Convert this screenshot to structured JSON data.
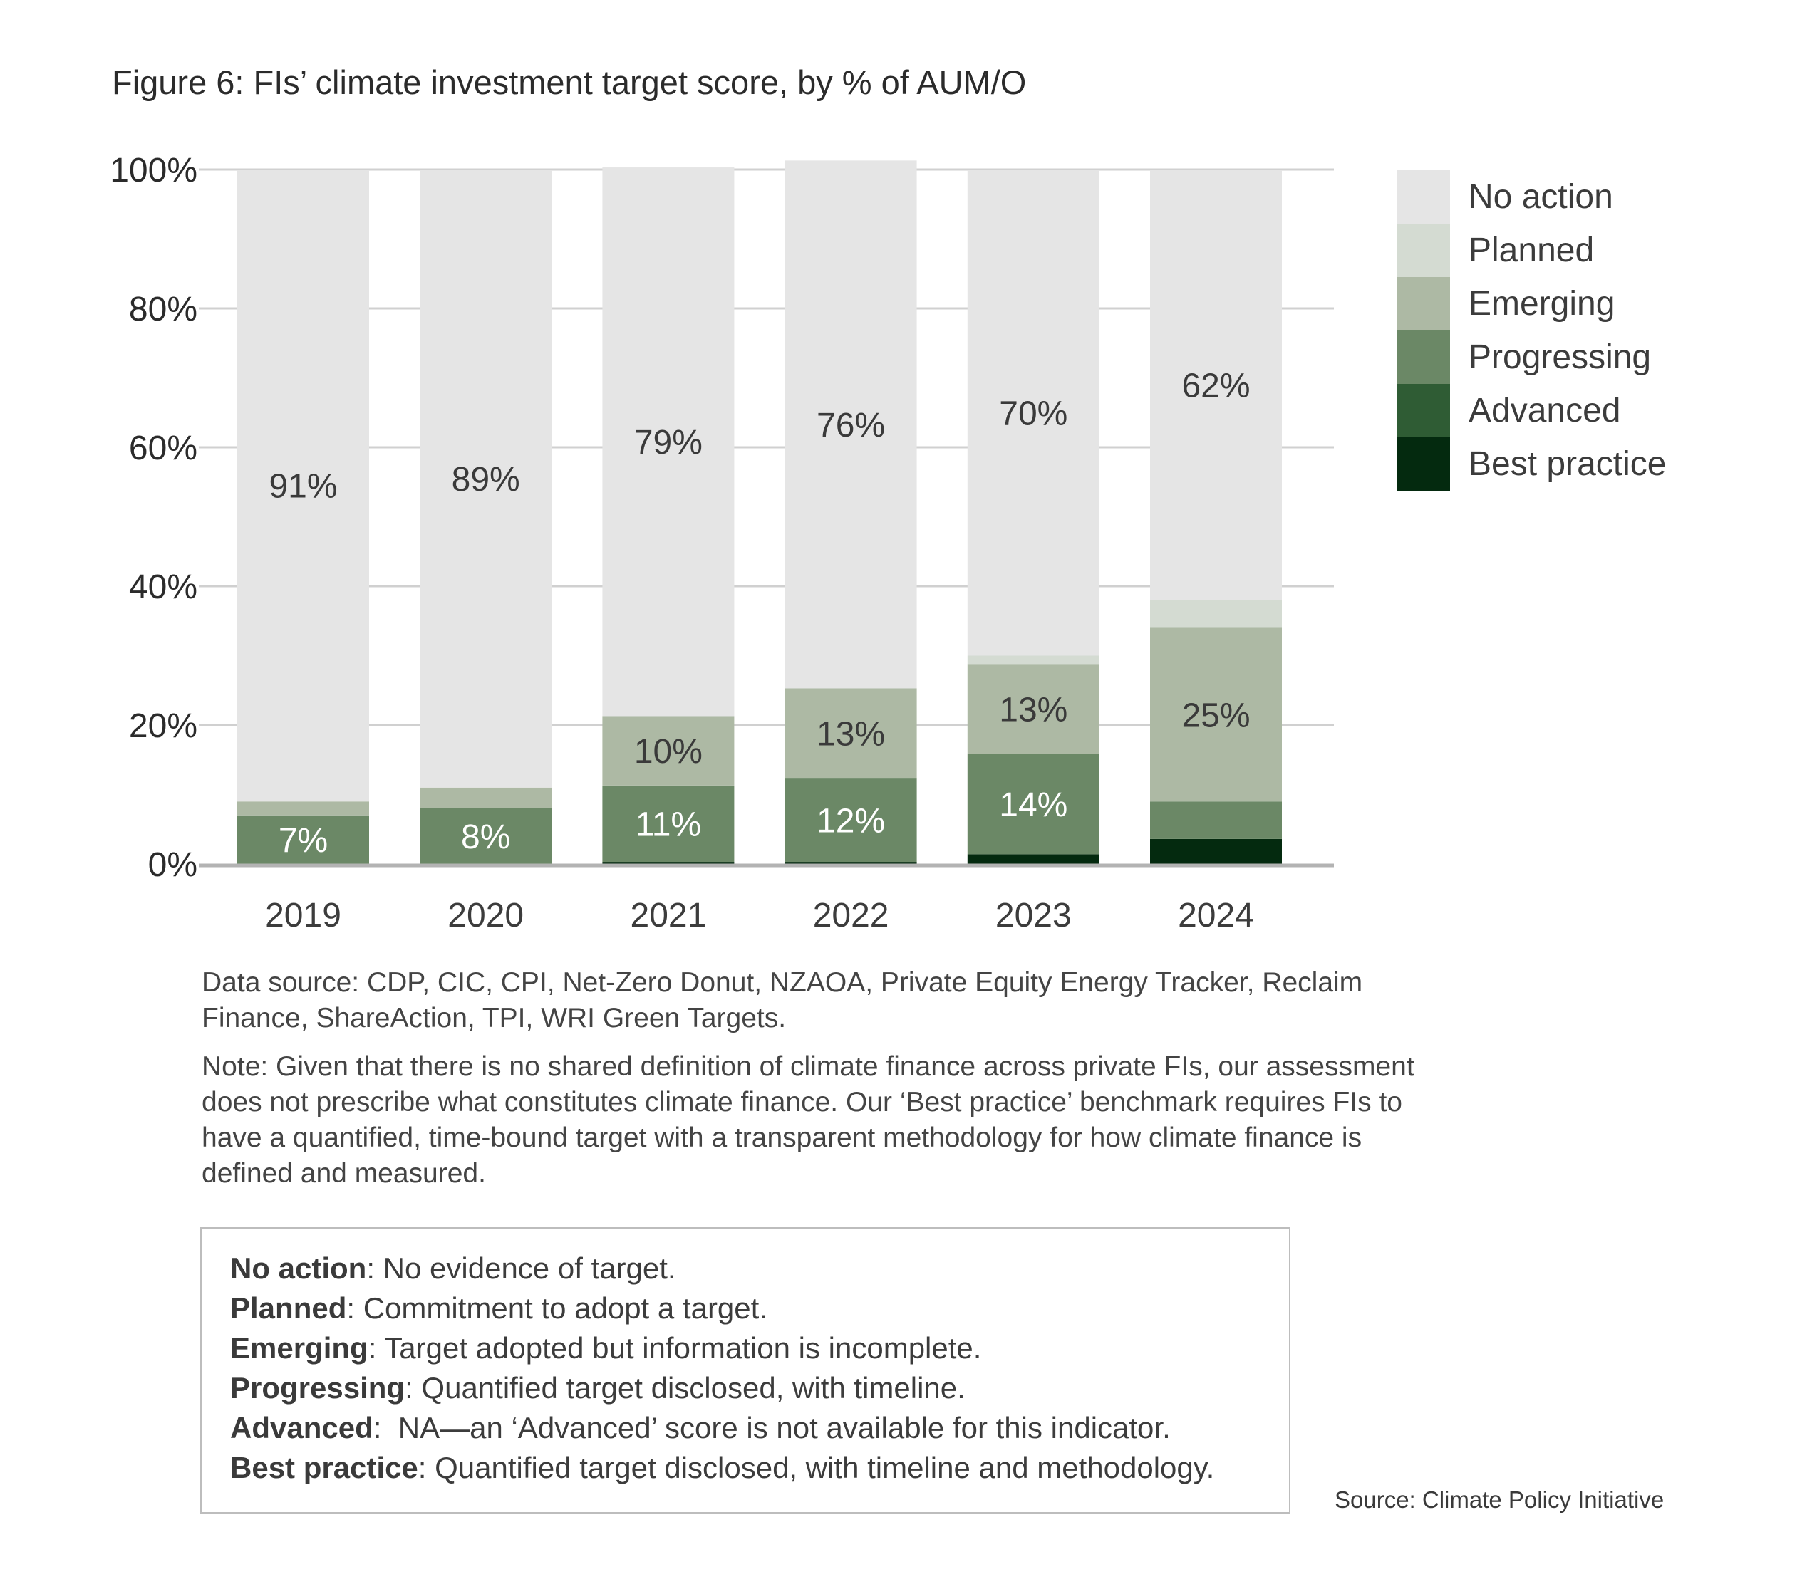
{
  "title": "Figure 6: FIs’ climate investment target score, by % of AUM/O",
  "chart_data": {
    "type": "bar",
    "stacked": true,
    "title": "Figure 6: FIs’ climate investment target score, by % of AUM/O",
    "xlabel": "",
    "ylabel": "",
    "ylim": [
      0,
      100
    ],
    "yticks": [
      0,
      20,
      40,
      60,
      80,
      100
    ],
    "ytick_labels": [
      "0%",
      "20%",
      "40%",
      "60%",
      "80%",
      "100%"
    ],
    "grid": true,
    "legend_position": "right",
    "categories": [
      "2019",
      "2020",
      "2021",
      "2022",
      "2023",
      "2024"
    ],
    "series": [
      {
        "name": "Best practice",
        "color": "#042a0f",
        "values": [
          0,
          0,
          0.3,
          0.3,
          1.4,
          3.6
        ],
        "labels": [
          "",
          "",
          "",
          "",
          "",
          ""
        ],
        "label_color": "#ffffff"
      },
      {
        "name": "Advanced",
        "color": "#2f5c34",
        "values": [
          0,
          0,
          0,
          0,
          0,
          0
        ],
        "labels": [
          "",
          "",
          "",
          "",
          "",
          ""
        ],
        "label_color": "#ffffff"
      },
      {
        "name": "Progressing",
        "color": "#6b8866",
        "values": [
          7,
          8,
          11,
          12,
          14.4,
          5.4
        ],
        "labels": [
          "7%",
          "8%",
          "11%",
          "12%",
          "14%",
          ""
        ],
        "label_color": "#ffffff"
      },
      {
        "name": "Emerging",
        "color": "#adb9a4",
        "values": [
          2,
          3,
          10,
          13,
          13,
          25
        ],
        "labels": [
          "",
          "",
          "10%",
          "13%",
          "13%",
          "25%"
        ],
        "label_color": "#3a3a3a"
      },
      {
        "name": "Planned",
        "color": "#d4dbd2",
        "values": [
          0,
          0,
          0,
          0,
          1.2,
          4
        ],
        "labels": [
          "",
          "",
          "",
          "",
          "",
          ""
        ],
        "label_color": "#3a3a3a"
      },
      {
        "name": "No action",
        "color": "#e5e5e5",
        "values": [
          91,
          89,
          79,
          76,
          70,
          62
        ],
        "labels": [
          "91%",
          "89%",
          "79%",
          "76%",
          "70%",
          "62%"
        ],
        "label_color": "#3a3a3a"
      }
    ]
  },
  "legend": [
    {
      "label": "No action",
      "color": "#e5e5e5"
    },
    {
      "label": "Planned",
      "color": "#d4dbd2"
    },
    {
      "label": "Emerging",
      "color": "#adb9a4"
    },
    {
      "label": "Progressing",
      "color": "#6b8866"
    },
    {
      "label": "Advanced",
      "color": "#2f5c34"
    },
    {
      "label": "Best practice",
      "color": "#042a0f"
    }
  ],
  "notes": {
    "data_source": "Data source: CDP, CIC, CPI, Net-Zero Donut, NZAOA, Private Equity Energy Tracker, Reclaim Finance, ShareAction, TPI, WRI Green Targets.",
    "note": "Note: Given that there is no shared definition of climate finance across private FIs, our assessment does not prescribe what constitutes climate finance. Our ‘Best practice’ benchmark requires FIs to have a quantified, time-bound target with a transparent methodology for how climate finance is defined and measured."
  },
  "definitions": [
    {
      "term": "No action",
      "text": ": No evidence of target."
    },
    {
      "term": "Planned",
      "text": ": Commitment to adopt a target."
    },
    {
      "term": "Emerging",
      "text": ": Target adopted but information is incomplete."
    },
    {
      "term": "Progressing",
      "text": ": Quantified target disclosed, with timeline."
    },
    {
      "term": "Advanced",
      "text": ":  NA—an ‘Advanced’ score is not available for this indicator."
    },
    {
      "term": "Best practice",
      "text": ": Quantified target disclosed, with timeline and methodology."
    }
  ],
  "source": "Source: Climate Policy Initiative"
}
